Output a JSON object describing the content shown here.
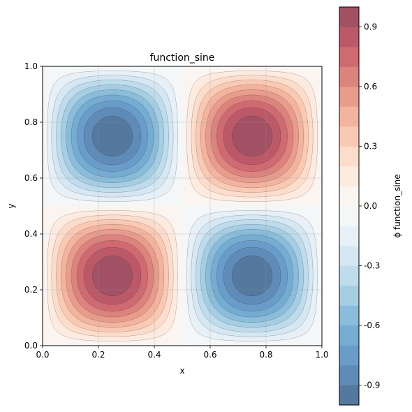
{
  "chart_data": {
    "type": "contour",
    "title": "function_sine",
    "xlabel": "x",
    "ylabel": "y",
    "xlim": [
      0.0,
      1.0
    ],
    "ylim": [
      0.0,
      1.0
    ],
    "x_ticks": [
      "0.0",
      "0.2",
      "0.4",
      "0.6",
      "0.8",
      "1.0"
    ],
    "y_ticks": [
      "0.0",
      "0.2",
      "0.4",
      "0.6",
      "0.8",
      "1.0"
    ],
    "grid": true,
    "function": "sin(2*pi*x) * sin(2*pi*y)",
    "z_range": [
      -1.0,
      1.0
    ],
    "levels": [
      -1.0,
      -0.9,
      -0.8,
      -0.7,
      -0.6,
      -0.5,
      -0.4,
      -0.3,
      -0.2,
      -0.1,
      0.0,
      0.1,
      0.2,
      0.3,
      0.4,
      0.5,
      0.6,
      0.7,
      0.8,
      0.9,
      1.0
    ],
    "colormap": "RdBu_r",
    "alpha": 0.7,
    "peaks": [
      {
        "x": 0.25,
        "y": 0.25,
        "value": 1.0
      },
      {
        "x": 0.75,
        "y": 0.75,
        "value": 1.0
      },
      {
        "x": 0.25,
        "y": 0.75,
        "value": -1.0
      },
      {
        "x": 0.75,
        "y": 0.25,
        "value": -1.0
      }
    ],
    "colorbar": {
      "label": "ϕ function_sine",
      "ticks": [
        "-0.9",
        "-0.6",
        "-0.3",
        "0.0",
        "0.3",
        "0.6",
        "0.9"
      ],
      "tick_values": [
        -0.9,
        -0.6,
        -0.3,
        0.0,
        0.3,
        0.6,
        0.9
      ]
    }
  }
}
